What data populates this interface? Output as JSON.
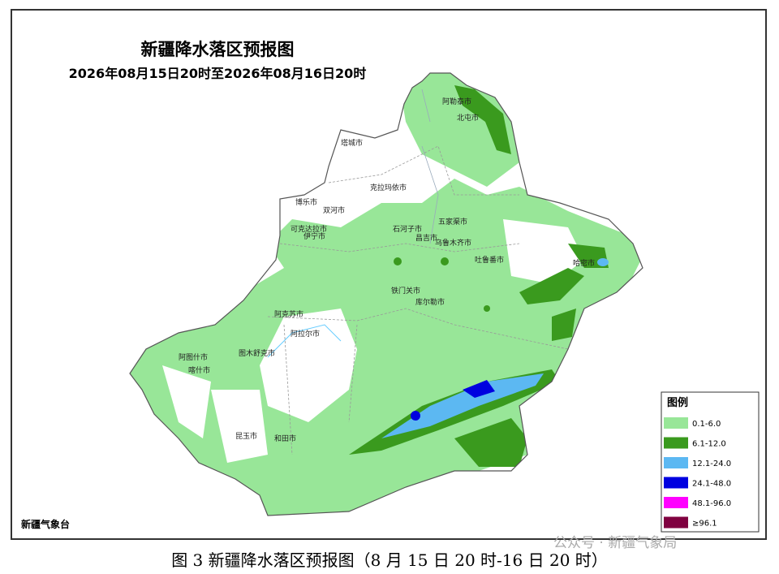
{
  "title": "新疆降水落区预报图",
  "subtitle": "2026年08月15日20时至2026年08月16日20时",
  "legend": {
    "title": "图例",
    "items": [
      {
        "label": "0.1-6.0",
        "color": "#98e698"
      },
      {
        "label": "6.1-12.0",
        "color": "#3a9a1e"
      },
      {
        "label": "12.1-24.0",
        "color": "#5cb8f2"
      },
      {
        "label": "24.1-48.0",
        "color": "#0000e0"
      },
      {
        "label": "48.1-96.0",
        "color": "#ff00ff"
      },
      {
        "label": "≥96.1",
        "color": "#800040"
      }
    ]
  },
  "cities": [
    "阿勒泰市",
    "北屯市",
    "塔城市",
    "克拉玛依市",
    "博乐市",
    "双河市",
    "五家渠市",
    "石河子市",
    "昌吉市",
    "乌鲁木齐市",
    "可克达拉市",
    "伊宁市",
    "吐鲁番市",
    "哈密市",
    "铁门关市",
    "库尔勒市",
    "阿克苏市",
    "阿拉尔市",
    "阿图什市",
    "图木舒克市",
    "喀什市",
    "昆玉市",
    "和田市"
  ],
  "source": "新疆气象台",
  "caption": "图 3 新疆降水落区预报图（8 月 15 日 20 时-16 日 20 时）",
  "watermark": "公众号 · 新疆气象局"
}
